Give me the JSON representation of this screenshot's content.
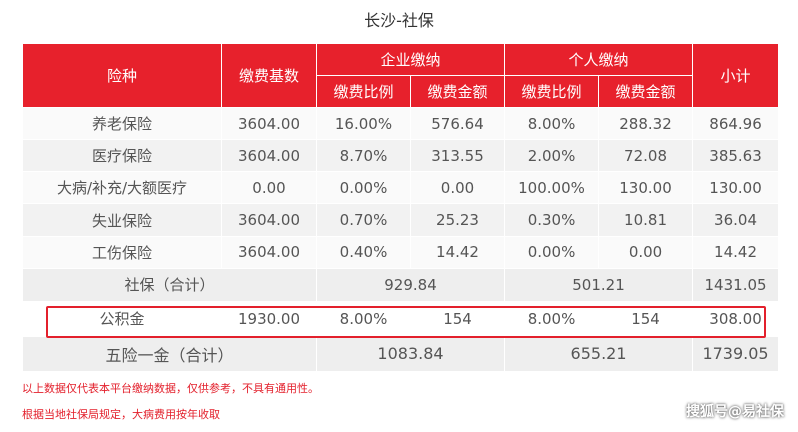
{
  "title": "长沙-社保",
  "header": {
    "col_insurance": "险种",
    "col_base": "缴费基数",
    "group_company": "企业缴纳",
    "group_personal": "个人缴纳",
    "col_subtotal": "小计",
    "sub_rate": "缴费比例",
    "sub_amount": "缴费金额"
  },
  "rows": [
    {
      "name": "养老保险",
      "base": "3604.00",
      "c_rate": "16.00%",
      "c_amt": "576.64",
      "p_rate": "8.00%",
      "p_amt": "288.32",
      "subtotal": "864.96"
    },
    {
      "name": "医疗保险",
      "base": "3604.00",
      "c_rate": "8.70%",
      "c_amt": "313.55",
      "p_rate": "2.00%",
      "p_amt": "72.08",
      "subtotal": "385.63"
    },
    {
      "name": "大病/补充/大额医疗",
      "base": "0.00",
      "c_rate": "0.00%",
      "c_amt": "0.00",
      "p_rate": "100.00%",
      "p_amt": "130.00",
      "subtotal": "130.00"
    },
    {
      "name": "失业保险",
      "base": "3604.00",
      "c_rate": "0.70%",
      "c_amt": "25.23",
      "p_rate": "0.30%",
      "p_amt": "10.81",
      "subtotal": "36.04"
    },
    {
      "name": "工伤保险",
      "base": "3604.00",
      "c_rate": "0.40%",
      "c_amt": "14.42",
      "p_rate": "0.00%",
      "p_amt": "0.00",
      "subtotal": "14.42"
    }
  ],
  "social_total": {
    "label": "社保（合计）",
    "company": "929.84",
    "personal": "501.21",
    "subtotal": "1431.05"
  },
  "housing_fund": {
    "name": "公积金",
    "base": "1930.00",
    "c_rate": "8.00%",
    "c_amt": "154",
    "p_rate": "8.00%",
    "p_amt": "154",
    "subtotal": "308.00"
  },
  "grand_total": {
    "label": "五险一金（合计）",
    "company": "1083.84",
    "personal": "655.21",
    "subtotal": "1739.05"
  },
  "notes": [
    "以上数据仅代表本平台缴纳数据，仅供参考，不具有通用性。",
    "根据当地社保局规定，大病费用按年收取"
  ],
  "watermark": "搜狐号@易社保",
  "colors": {
    "header_bg": "#e7212c",
    "highlight_border": "#e3202c",
    "note_text": "#e3202c"
  }
}
